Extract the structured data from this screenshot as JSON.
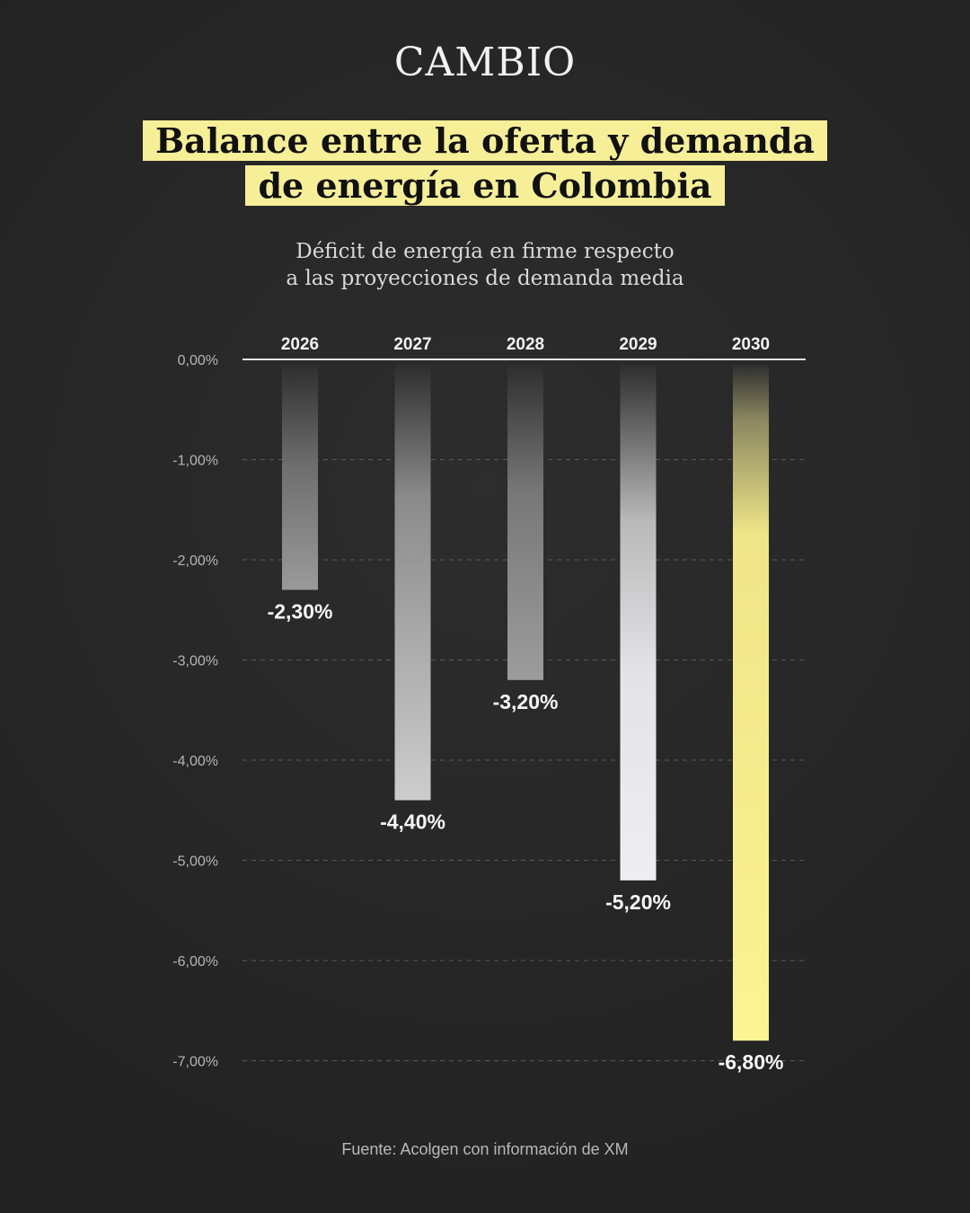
{
  "brand": "CAMBIO",
  "title": {
    "line1": "Balance entre la oferta y demanda",
    "line2": "de energía en Colombia"
  },
  "subtitle": {
    "line1": "Déficit de energía en firme respecto",
    "line2": "a las proyecciones de demanda media"
  },
  "source": "Fuente: Acolgen con información de XM",
  "colors": {
    "background": "#262626",
    "highlight": "#f7ef98",
    "bar_gray": "#c8c8c8",
    "bar_light": "#ececf0",
    "bar_yellow": "#fbf190"
  },
  "chart_data": {
    "type": "bar",
    "categories": [
      "2026",
      "2027",
      "2028",
      "2029",
      "2030"
    ],
    "values": [
      -2.3,
      -4.4,
      -3.2,
      -5.2,
      -6.8
    ],
    "value_labels": [
      "-2,30%",
      "-4,40%",
      "-3,20%",
      "-5,20%",
      "-6,80%"
    ],
    "ylim": [
      -7,
      0
    ],
    "yticks": [
      0,
      -1,
      -2,
      -3,
      -4,
      -5,
      -6,
      -7
    ],
    "ytick_labels": [
      "0,00%",
      "-1,00%",
      "-2,00%",
      "-3,00%",
      "-4,00%",
      "-5,00%",
      "-6,00%",
      "-7,00%"
    ],
    "category_axis_position": "top",
    "grid": "dashed horizontal",
    "legend": "none"
  }
}
